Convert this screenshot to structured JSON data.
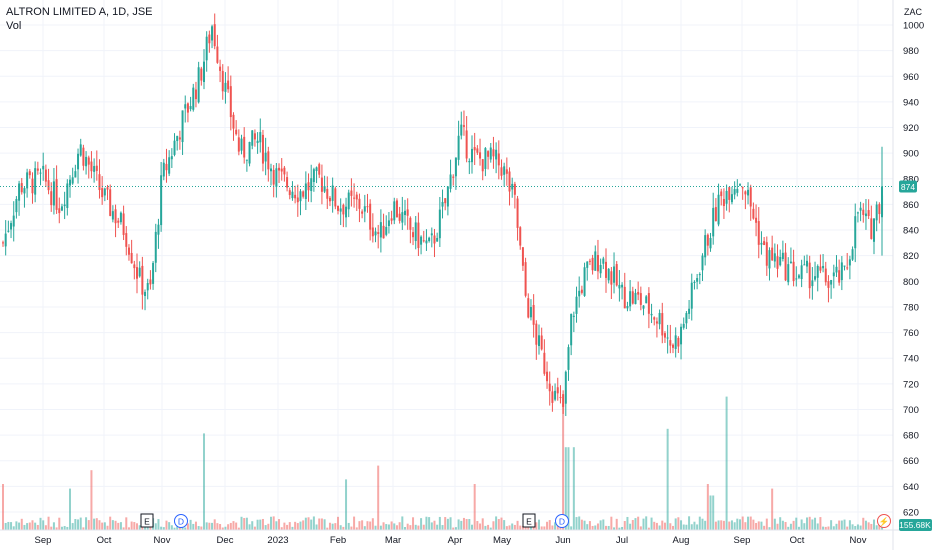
{
  "header": {
    "title": "ALTRON LIMITED A, 1D, JSE",
    "volume_label": "Vol"
  },
  "colors": {
    "up": "#26a69a",
    "down": "#ef5350",
    "grid": "#f0f3fa",
    "text": "#131722",
    "price_line": "#26a69a",
    "volume_badge": "#26a69a"
  },
  "chart_data": {
    "type": "candlestick",
    "title": "ALTRON LIMITED A, 1D, JSE",
    "currency": "ZAC",
    "y_ticks": [
      620,
      640,
      660,
      680,
      700,
      720,
      740,
      760,
      780,
      800,
      820,
      840,
      860,
      880,
      900,
      920,
      940,
      960,
      980,
      1000
    ],
    "ylim": [
      606,
      1022
    ],
    "x_ticks": [
      "Sep",
      "Oct",
      "Nov",
      "Dec",
      "2023",
      "Feb",
      "Mar",
      "Apr",
      "May",
      "Jun",
      "Jul",
      "Aug",
      "Sep",
      "Oct",
      "Nov"
    ],
    "last_price": 874,
    "last_price_label": "874",
    "last_volume_label": "155.68K",
    "event_markers": [
      {
        "symbol": "E",
        "near_tick": "Nov"
      },
      {
        "symbol": "D",
        "near_tick": "Nov"
      },
      {
        "symbol": "E",
        "near_tick": "May"
      },
      {
        "symbol": "D",
        "near_tick": "Jun"
      },
      {
        "symbol": "⚡",
        "near_tick": "Nov"
      }
    ],
    "key_closes": [
      {
        "near": "start",
        "close": 830
      },
      {
        "near": "Sep",
        "close": 880
      },
      {
        "near": "Oct",
        "close": 860
      },
      {
        "near": "Nov",
        "close": 790
      },
      {
        "near": "Nov",
        "close": 900
      },
      {
        "near": "Dec",
        "close": 1000
      },
      {
        "near": "Dec",
        "close": 900
      },
      {
        "near": "2023",
        "close": 870
      },
      {
        "near": "Feb",
        "close": 860
      },
      {
        "near": "Mar",
        "close": 840
      },
      {
        "near": "Apr",
        "close": 900
      },
      {
        "near": "May",
        "close": 880
      },
      {
        "near": "May",
        "close": 760
      },
      {
        "near": "Jun",
        "close": 700
      },
      {
        "near": "Jun",
        "close": 800
      },
      {
        "near": "Jul",
        "close": 790
      },
      {
        "near": "Aug",
        "close": 760
      },
      {
        "near": "Aug",
        "close": 860
      },
      {
        "near": "Sep",
        "close": 880
      },
      {
        "near": "Sep",
        "close": 810
      },
      {
        "near": "Oct",
        "close": 810
      },
      {
        "near": "Nov",
        "close": 800
      },
      {
        "near": "Nov",
        "close": 860
      },
      {
        "near": "end",
        "close": 874
      }
    ]
  }
}
